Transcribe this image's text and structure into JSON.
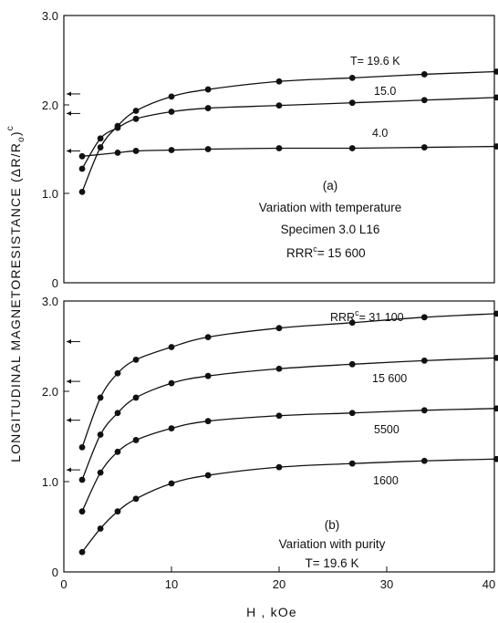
{
  "chart_data": [
    {
      "type": "line",
      "panel_label": "(a)",
      "annotations": [
        "Variation with temperature",
        "Specimen 3.0 L16",
        "RRR",
        "c",
        "= 15 600"
      ],
      "xlim": [
        0,
        40
      ],
      "ylim": [
        0,
        3.0
      ],
      "yticks": [
        "3.0",
        "2.0",
        "1.0",
        "0"
      ],
      "arrow_marks_y": [
        2.12,
        1.9,
        1.48
      ],
      "series": [
        {
          "label": "T= 19.6 K",
          "x": [
            1.7,
            3.4,
            5.0,
            6.7,
            10.0,
            13.4,
            20.0,
            26.8,
            33.5,
            40.2
          ],
          "y": [
            1.02,
            1.52,
            1.76,
            1.93,
            2.09,
            2.17,
            2.26,
            2.3,
            2.34,
            2.37
          ]
        },
        {
          "label": "15.0",
          "x": [
            1.7,
            3.4,
            5.0,
            6.7,
            10.0,
            13.4,
            20.0,
            26.8,
            33.5,
            40.2
          ],
          "y": [
            1.28,
            1.62,
            1.74,
            1.84,
            1.92,
            1.96,
            1.99,
            2.02,
            2.05,
            2.08
          ]
        },
        {
          "label": "4.0",
          "x": [
            1.7,
            5.0,
            6.7,
            10.0,
            13.4,
            20.0,
            26.8,
            33.5,
            40.2
          ],
          "y": [
            1.42,
            1.46,
            1.48,
            1.49,
            1.5,
            1.51,
            1.51,
            1.52,
            1.53
          ]
        }
      ]
    },
    {
      "type": "line",
      "panel_label": "(b)",
      "annotations": [
        "Variation with purity",
        "T= 19.6 K"
      ],
      "xlim": [
        0,
        40
      ],
      "ylim": [
        0,
        3.0
      ],
      "yticks": [
        "3.0",
        "2.0",
        "1.0",
        "0"
      ],
      "xticks": [
        "0",
        "10",
        "20",
        "30",
        "40"
      ],
      "xlabel": "H , kOe",
      "ylabel": "LONGITUDINAL  MAGNETORESISTANCE  (ΔR/R",
      "ylabel_sub": "o",
      "ylabel_end": ")",
      "ylabel_sup": "c",
      "arrow_marks_y": [
        2.55,
        2.11,
        1.68,
        1.13
      ],
      "series": [
        {
          "label": "RRR",
          "label_sup": "c",
          "label_end": "= 31 100",
          "x": [
            1.7,
            3.4,
            5.0,
            6.7,
            10.0,
            13.4,
            20.0,
            26.8,
            33.5,
            40.2
          ],
          "y": [
            1.38,
            1.93,
            2.2,
            2.35,
            2.49,
            2.6,
            2.7,
            2.76,
            2.82,
            2.86
          ]
        },
        {
          "label": "15 600",
          "x": [
            1.7,
            3.4,
            5.0,
            6.7,
            10.0,
            13.4,
            20.0,
            26.8,
            33.5,
            40.2
          ],
          "y": [
            1.02,
            1.52,
            1.76,
            1.93,
            2.09,
            2.17,
            2.25,
            2.3,
            2.34,
            2.37
          ]
        },
        {
          "label": "5500",
          "x": [
            1.7,
            3.4,
            5.0,
            6.7,
            10.0,
            13.4,
            20.0,
            26.8,
            33.5,
            40.2
          ],
          "y": [
            0.67,
            1.1,
            1.33,
            1.46,
            1.59,
            1.67,
            1.73,
            1.76,
            1.79,
            1.81
          ]
        },
        {
          "label": "1600",
          "x": [
            1.7,
            3.4,
            5.0,
            6.7,
            10.0,
            13.4,
            20.0,
            26.8,
            33.5,
            40.2
          ],
          "y": [
            0.22,
            0.48,
            0.67,
            0.81,
            0.98,
            1.07,
            1.16,
            1.2,
            1.23,
            1.25
          ]
        }
      ]
    }
  ]
}
